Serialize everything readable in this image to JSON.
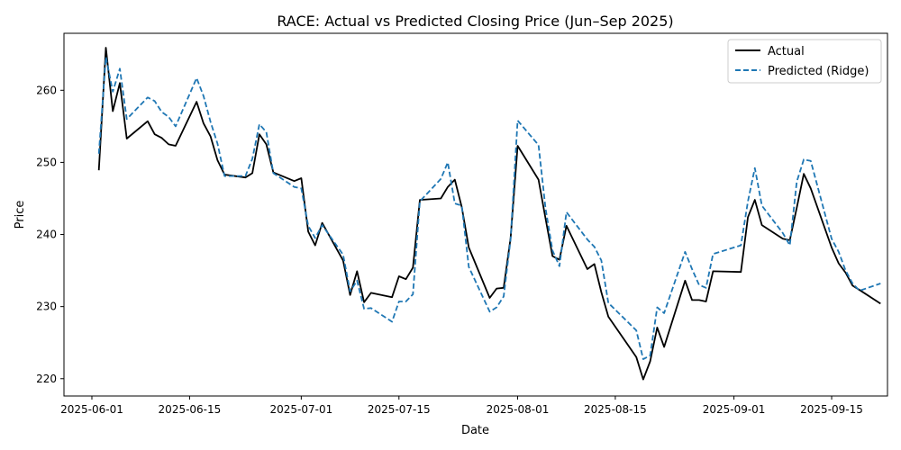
{
  "chart_data": {
    "type": "line",
    "title": "RACE: Actual vs Predicted Closing Price (Jun–Sep 2025)",
    "xlabel": "Date",
    "ylabel": "Price",
    "xlim": [
      "2025-05-28",
      "2025-09-23"
    ],
    "ylim": [
      217.6,
      267.9
    ],
    "x_ticks": [
      "2025-06-01",
      "2025-06-15",
      "2025-07-01",
      "2025-07-15",
      "2025-08-01",
      "2025-08-15",
      "2025-09-01",
      "2025-09-15"
    ],
    "y_ticks": [
      220,
      230,
      240,
      250,
      260
    ],
    "grid": false,
    "legend_position": "upper right",
    "series": [
      {
        "name": "Actual",
        "color": "#000000",
        "style": "solid",
        "points": [
          [
            "2025-06-02",
            248.9
          ],
          [
            "2025-06-03",
            265.9
          ],
          [
            "2025-06-04",
            257.1
          ],
          [
            "2025-06-05",
            261.0
          ],
          [
            "2025-06-06",
            253.3
          ],
          [
            "2025-06-09",
            255.7
          ],
          [
            "2025-06-10",
            253.9
          ],
          [
            "2025-06-11",
            253.4
          ],
          [
            "2025-06-12",
            252.5
          ],
          [
            "2025-06-13",
            252.3
          ],
          [
            "2025-06-16",
            258.4
          ],
          [
            "2025-06-17",
            255.4
          ],
          [
            "2025-06-18",
            253.6
          ],
          [
            "2025-06-19",
            250.3
          ],
          [
            "2025-06-20",
            248.3
          ],
          [
            "2025-06-23",
            247.9
          ],
          [
            "2025-06-24",
            248.5
          ],
          [
            "2025-06-25",
            253.9
          ],
          [
            "2025-06-26",
            252.5
          ],
          [
            "2025-06-27",
            248.6
          ],
          [
            "2025-06-30",
            247.4
          ],
          [
            "2025-07-01",
            247.8
          ],
          [
            "2025-07-02",
            240.4
          ],
          [
            "2025-07-03",
            238.5
          ],
          [
            "2025-07-04",
            241.6
          ],
          [
            "2025-07-07",
            236.4
          ],
          [
            "2025-07-08",
            231.6
          ],
          [
            "2025-07-09",
            234.9
          ],
          [
            "2025-07-10",
            230.6
          ],
          [
            "2025-07-11",
            231.9
          ],
          [
            "2025-07-14",
            231.3
          ],
          [
            "2025-07-15",
            234.2
          ],
          [
            "2025-07-16",
            233.8
          ],
          [
            "2025-07-17",
            235.4
          ],
          [
            "2025-07-18",
            244.8
          ],
          [
            "2025-07-21",
            245.0
          ],
          [
            "2025-07-22",
            246.6
          ],
          [
            "2025-07-23",
            247.6
          ],
          [
            "2025-07-24",
            243.8
          ],
          [
            "2025-07-25",
            238.2
          ],
          [
            "2025-07-28",
            231.2
          ],
          [
            "2025-07-29",
            232.5
          ],
          [
            "2025-07-30",
            232.6
          ],
          [
            "2025-07-31",
            239.5
          ],
          [
            "2025-08-01",
            252.3
          ],
          [
            "2025-08-04",
            247.6
          ],
          [
            "2025-08-05",
            242.2
          ],
          [
            "2025-08-06",
            237.0
          ],
          [
            "2025-08-07",
            236.5
          ],
          [
            "2025-08-08",
            241.2
          ],
          [
            "2025-08-11",
            235.2
          ],
          [
            "2025-08-12",
            235.9
          ],
          [
            "2025-08-13",
            232.0
          ],
          [
            "2025-08-14",
            228.6
          ],
          [
            "2025-08-18",
            223.0
          ],
          [
            "2025-08-19",
            219.9
          ],
          [
            "2025-08-20",
            222.4
          ],
          [
            "2025-08-21",
            227.1
          ],
          [
            "2025-08-22",
            224.4
          ],
          [
            "2025-08-25",
            233.6
          ],
          [
            "2025-08-26",
            230.9
          ],
          [
            "2025-08-27",
            230.9
          ],
          [
            "2025-08-28",
            230.7
          ],
          [
            "2025-08-29",
            234.9
          ],
          [
            "2025-09-02",
            234.8
          ],
          [
            "2025-09-03",
            242.4
          ],
          [
            "2025-09-04",
            244.8
          ],
          [
            "2025-09-05",
            241.3
          ],
          [
            "2025-09-08",
            239.4
          ],
          [
            "2025-09-09",
            239.2
          ],
          [
            "2025-09-10",
            243.7
          ],
          [
            "2025-09-11",
            248.4
          ],
          [
            "2025-09-12",
            246.4
          ],
          [
            "2025-09-15",
            238.2
          ],
          [
            "2025-09-16",
            236.0
          ],
          [
            "2025-09-17",
            234.7
          ],
          [
            "2025-09-18",
            232.9
          ],
          [
            "2025-09-19",
            232.3
          ],
          [
            "2025-09-22",
            230.4
          ]
        ]
      },
      {
        "name": "Predicted (Ridge)",
        "color": "#1f77b4",
        "style": "dashed",
        "points": [
          [
            "2025-06-02",
            251.2
          ],
          [
            "2025-06-03",
            264.6
          ],
          [
            "2025-06-04",
            259.8
          ],
          [
            "2025-06-05",
            263.0
          ],
          [
            "2025-06-06",
            256.0
          ],
          [
            "2025-06-09",
            259.0
          ],
          [
            "2025-06-10",
            258.5
          ],
          [
            "2025-06-11",
            257.0
          ],
          [
            "2025-06-12",
            256.3
          ],
          [
            "2025-06-13",
            255.0
          ],
          [
            "2025-06-16",
            261.7
          ],
          [
            "2025-06-17",
            259.2
          ],
          [
            "2025-06-18",
            255.6
          ],
          [
            "2025-06-19",
            252.6
          ],
          [
            "2025-06-20",
            248.1
          ],
          [
            "2025-06-23",
            248.1
          ],
          [
            "2025-06-24",
            250.5
          ],
          [
            "2025-06-25",
            255.3
          ],
          [
            "2025-06-26",
            254.2
          ],
          [
            "2025-06-27",
            248.5
          ],
          [
            "2025-06-30",
            246.6
          ],
          [
            "2025-07-01",
            246.4
          ],
          [
            "2025-07-02",
            241.2
          ],
          [
            "2025-07-03",
            239.5
          ],
          [
            "2025-07-04",
            241.3
          ],
          [
            "2025-07-07",
            237.2
          ],
          [
            "2025-07-08",
            232.1
          ],
          [
            "2025-07-09",
            233.6
          ],
          [
            "2025-07-10",
            229.7
          ],
          [
            "2025-07-11",
            229.8
          ],
          [
            "2025-07-14",
            227.9
          ],
          [
            "2025-07-15",
            230.7
          ],
          [
            "2025-07-16",
            230.7
          ],
          [
            "2025-07-17",
            231.7
          ],
          [
            "2025-07-18",
            244.6
          ],
          [
            "2025-07-21",
            247.7
          ],
          [
            "2025-07-22",
            250.0
          ],
          [
            "2025-07-23",
            244.3
          ],
          [
            "2025-07-24",
            244.0
          ],
          [
            "2025-07-25",
            235.5
          ],
          [
            "2025-07-28",
            229.3
          ],
          [
            "2025-07-29",
            229.9
          ],
          [
            "2025-07-30",
            231.4
          ],
          [
            "2025-07-31",
            239.3
          ],
          [
            "2025-08-01",
            255.8
          ],
          [
            "2025-08-04",
            252.4
          ],
          [
            "2025-08-05",
            243.6
          ],
          [
            "2025-08-06",
            237.8
          ],
          [
            "2025-08-07",
            235.6
          ],
          [
            "2025-08-08",
            243.1
          ],
          [
            "2025-08-11",
            239.3
          ],
          [
            "2025-08-12",
            238.3
          ],
          [
            "2025-08-13",
            236.4
          ],
          [
            "2025-08-14",
            230.5
          ],
          [
            "2025-08-18",
            226.7
          ],
          [
            "2025-08-19",
            222.7
          ],
          [
            "2025-08-20",
            223.2
          ],
          [
            "2025-08-21",
            229.9
          ],
          [
            "2025-08-22",
            229.1
          ],
          [
            "2025-08-25",
            237.6
          ],
          [
            "2025-08-26",
            235.2
          ],
          [
            "2025-08-27",
            233.0
          ],
          [
            "2025-08-28",
            232.6
          ],
          [
            "2025-08-29",
            237.3
          ],
          [
            "2025-09-02",
            238.5
          ],
          [
            "2025-09-03",
            244.6
          ],
          [
            "2025-09-04",
            249.2
          ],
          [
            "2025-09-05",
            244.0
          ],
          [
            "2025-09-08",
            240.2
          ],
          [
            "2025-09-09",
            238.5
          ],
          [
            "2025-09-10",
            247.3
          ],
          [
            "2025-09-11",
            250.4
          ],
          [
            "2025-09-12",
            250.2
          ],
          [
            "2025-09-15",
            239.4
          ],
          [
            "2025-09-16",
            237.6
          ],
          [
            "2025-09-17",
            235.0
          ],
          [
            "2025-09-18",
            233.2
          ],
          [
            "2025-09-19",
            232.2
          ],
          [
            "2025-09-22",
            233.2
          ]
        ]
      }
    ]
  }
}
